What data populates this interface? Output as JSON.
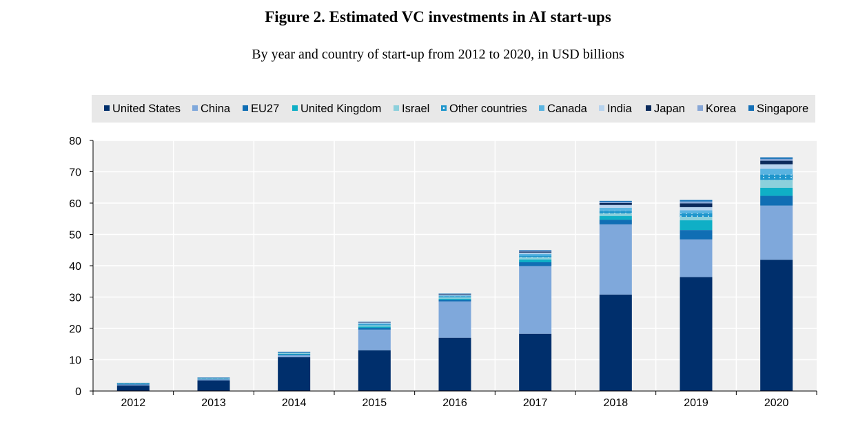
{
  "chart_data": {
    "type": "bar",
    "stacked": true,
    "title": "Figure 2. Estimated VC investments in AI start-ups",
    "subtitle": "By year and country of start-up from 2012 to 2020, in USD billions",
    "xlabel": "",
    "ylabel": "",
    "ylim": [
      0,
      80
    ],
    "yticks": [
      "0",
      "10",
      "20",
      "30",
      "40",
      "50",
      "60",
      "70",
      "80"
    ],
    "legend_position": "top",
    "categories": [
      "2012",
      "2013",
      "2014",
      "2015",
      "2016",
      "2017",
      "2018",
      "2019",
      "2020"
    ],
    "series": [
      {
        "name": "United States",
        "color": "#002F6C",
        "pattern": "solid",
        "values": [
          1.8,
          3.4,
          10.8,
          13.0,
          17.0,
          18.3,
          30.8,
          36.4,
          41.9
        ]
      },
      {
        "name": "China",
        "color": "#7FA8DB",
        "pattern": "solid",
        "values": [
          0.3,
          0.3,
          0.6,
          6.6,
          11.6,
          21.6,
          22.4,
          12.0,
          17.3
        ]
      },
      {
        "name": "EU27",
        "color": "#106EB4",
        "pattern": "solid",
        "values": [
          0.1,
          0.2,
          0.3,
          0.6,
          0.5,
          1.2,
          1.5,
          3.0,
          3.1
        ]
      },
      {
        "name": "United Kingdom",
        "color": "#0FAFC6",
        "pattern": "solid",
        "values": [
          0.1,
          0.1,
          0.2,
          0.4,
          0.4,
          0.9,
          1.2,
          3.1,
          2.6
        ]
      },
      {
        "name": "Israel",
        "color": "#8CD0DC",
        "pattern": "solid",
        "values": [
          0.1,
          0.1,
          0.2,
          0.4,
          0.4,
          0.7,
          0.8,
          1.1,
          2.5
        ]
      },
      {
        "name": "Other countries",
        "color": "#1F96CC",
        "pattern": "dotted",
        "values": [
          0.05,
          0.05,
          0.1,
          0.3,
          0.3,
          0.5,
          0.8,
          1.1,
          1.7
        ]
      },
      {
        "name": "Canada",
        "color": "#5AB4E1",
        "pattern": "solid",
        "values": [
          0.05,
          0.05,
          0.1,
          0.3,
          0.3,
          0.6,
          1.0,
          1.0,
          1.9
        ]
      },
      {
        "name": "India",
        "color": "#B7D3EE",
        "pattern": "solid",
        "values": [
          0.05,
          0.05,
          0.1,
          0.2,
          0.2,
          0.4,
          0.9,
          1.0,
          1.4
        ]
      },
      {
        "name": "Japan",
        "color": "#0B2A5B",
        "pattern": "solid",
        "values": [
          0.02,
          0.02,
          0.05,
          0.1,
          0.2,
          0.3,
          0.6,
          1.2,
          1.1
        ]
      },
      {
        "name": "Korea",
        "color": "#86A6D6",
        "pattern": "solid",
        "values": [
          0.02,
          0.02,
          0.05,
          0.1,
          0.1,
          0.3,
          0.4,
          0.6,
          0.6
        ]
      },
      {
        "name": "Singapore",
        "color": "#1470B7",
        "pattern": "solid",
        "values": [
          0.02,
          0.02,
          0.05,
          0.1,
          0.1,
          0.2,
          0.3,
          0.5,
          0.5
        ]
      }
    ]
  }
}
